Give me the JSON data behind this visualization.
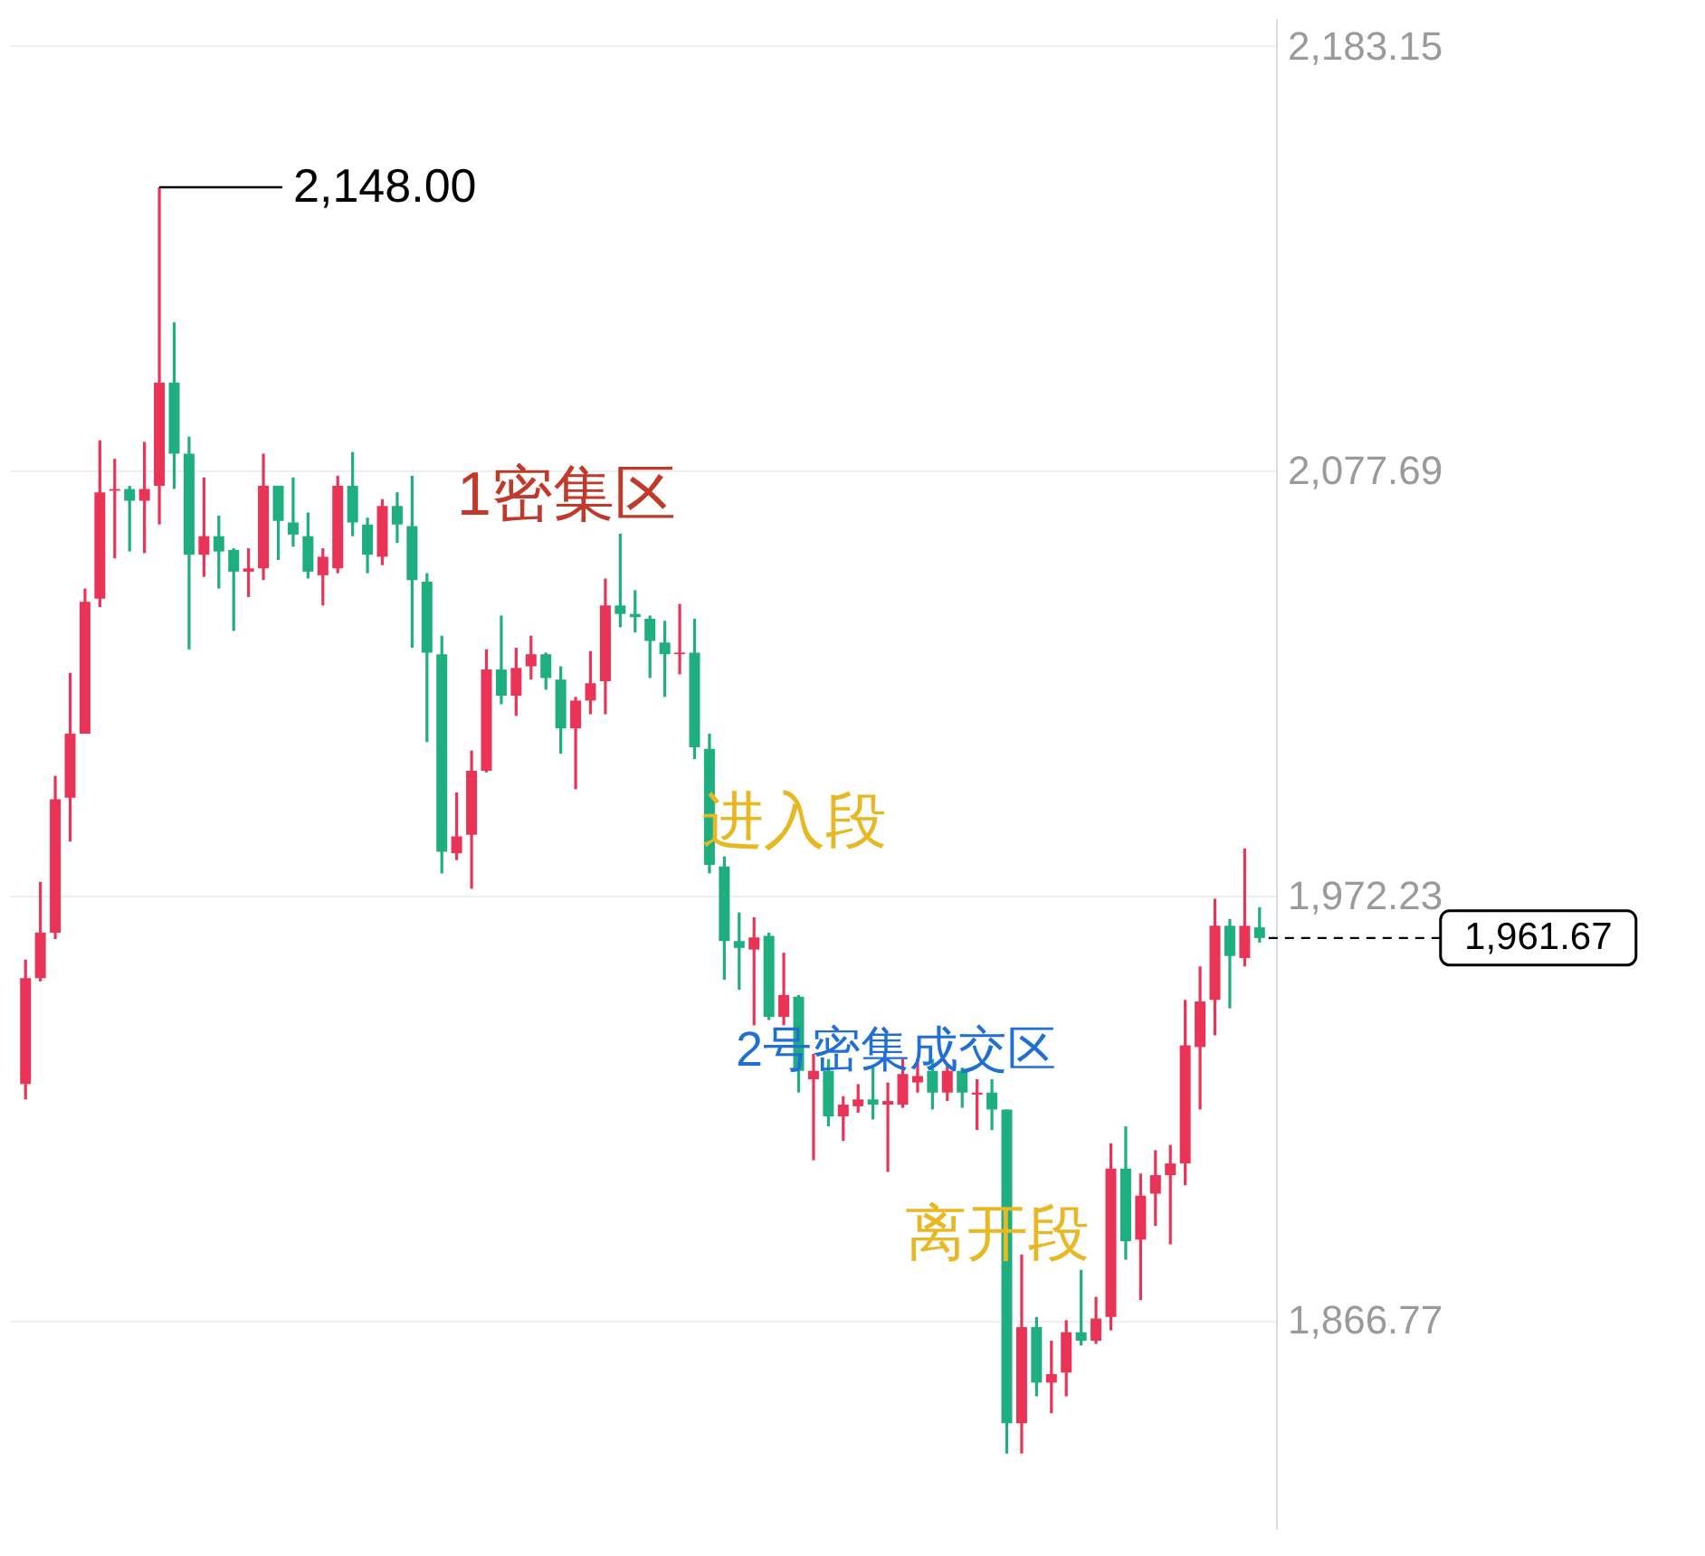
{
  "chart_data": {
    "type": "candlestick",
    "categories": [
      null,
      null,
      null,
      null,
      null,
      null,
      null,
      null,
      null,
      null,
      null,
      null,
      null,
      null,
      null,
      null,
      null,
      null,
      null,
      null,
      null,
      null,
      null,
      null,
      null,
      null,
      null,
      null,
      null,
      null,
      null,
      null,
      null,
      null,
      null,
      null,
      null,
      null,
      null,
      null,
      null,
      null,
      null,
      null,
      null,
      null,
      null,
      null,
      null,
      null,
      null,
      null,
      null,
      null,
      null,
      null,
      null,
      null,
      null,
      null,
      null,
      null,
      null,
      null,
      null,
      null,
      null,
      null,
      null,
      null,
      null,
      null,
      null,
      null,
      null,
      null,
      null,
      null,
      null,
      null,
      null,
      null,
      null,
      null
    ],
    "ohlc": [
      [
        1925.4,
        1956.3,
        1921.6,
        1951.7
      ],
      [
        1951.7,
        1975.6,
        1950.9,
        1963.0
      ],
      [
        1963.0,
        2001.9,
        1961.4,
        1996.1
      ],
      [
        1996.5,
        2027.5,
        1985.6,
        2012.4
      ],
      [
        2012.4,
        2048.4,
        2012.4,
        2045.1
      ],
      [
        2045.9,
        2085.2,
        2043.8,
        2072.3
      ],
      [
        2072.7,
        2080.6,
        2055.9,
        2073.1
      ],
      [
        2073.1,
        2073.9,
        2057.6,
        2070.2
      ],
      [
        2070.2,
        2084.8,
        2057.2,
        2073.1
      ],
      [
        2073.9,
        2148.0,
        2064.3,
        2099.5
      ],
      [
        2099.5,
        2114.5,
        2073.1,
        2081.9
      ],
      [
        2081.9,
        2086.1,
        2033.3,
        2056.8
      ],
      [
        2056.8,
        2076.0,
        2051.3,
        2061.4
      ],
      [
        2061.4,
        2066.5,
        2048.4,
        2057.6
      ],
      [
        2058.0,
        2058.4,
        2037.9,
        2052.6
      ],
      [
        2052.6,
        2058.4,
        2046.3,
        2053.4
      ],
      [
        2053.4,
        2081.9,
        2050.5,
        2073.9
      ],
      [
        2073.9,
        2073.9,
        2055.5,
        2065.2
      ],
      [
        2064.8,
        2076.0,
        2058.8,
        2061.8
      ],
      [
        2061.4,
        2067.3,
        2050.9,
        2052.6
      ],
      [
        2051.7,
        2058.4,
        2044.2,
        2056.3
      ],
      [
        2053.4,
        2076.4,
        2052.2,
        2073.9
      ],
      [
        2073.9,
        2082.3,
        2061.4,
        2064.8
      ],
      [
        2064.3,
        2066.0,
        2052.2,
        2056.8
      ],
      [
        2056.3,
        2070.6,
        2054.2,
        2068.9
      ],
      [
        2068.9,
        2072.3,
        2059.7,
        2064.3
      ],
      [
        2063.9,
        2076.4,
        2033.7,
        2050.5
      ],
      [
        2050.1,
        2052.2,
        2010.3,
        2032.5
      ],
      [
        2032.1,
        2036.7,
        1977.7,
        1983.1
      ],
      [
        1982.7,
        1997.8,
        1981.0,
        1986.9
      ],
      [
        1987.3,
        2008.2,
        1973.9,
        2003.2
      ],
      [
        2003.2,
        2033.3,
        2002.8,
        2028.3
      ],
      [
        2028.3,
        2041.7,
        2019.7,
        2021.8
      ],
      [
        2021.8,
        2033.7,
        2016.8,
        2028.7
      ],
      [
        2029.1,
        2036.7,
        2025.8,
        2032.1
      ],
      [
        2032.1,
        2032.5,
        2023.3,
        2026.2
      ],
      [
        2025.8,
        2029.1,
        2007.4,
        2013.7
      ],
      [
        2013.7,
        2021.5,
        1998.6,
        2020.6
      ],
      [
        2020.6,
        2032.9,
        2017.2,
        2024.9
      ],
      [
        2025.4,
        2050.9,
        2017.2,
        2044.2
      ],
      [
        2044.2,
        2062.0,
        2038.8,
        2042.1
      ],
      [
        2042.1,
        2048.0,
        2037.5,
        2041.3
      ],
      [
        2040.9,
        2041.7,
        2026.2,
        2035.4
      ],
      [
        2035.0,
        2040.4,
        2021.5,
        2032.1
      ],
      [
        2032.1,
        2044.6,
        2027.1,
        2032.5
      ],
      [
        2032.5,
        2040.9,
        2006.1,
        2009.0
      ],
      [
        2008.6,
        2012.4,
        1977.7,
        1979.8
      ],
      [
        1979.4,
        1981.9,
        1951.3,
        1960.9
      ],
      [
        1960.9,
        1968.0,
        1948.8,
        1959.2
      ],
      [
        1958.8,
        1966.8,
        1940.0,
        1961.8
      ],
      [
        1962.2,
        1963.0,
        1941.3,
        1942.1
      ],
      [
        1942.1,
        1958.0,
        1940.0,
        1947.5
      ],
      [
        1947.1,
        1947.5,
        1923.3,
        1928.7
      ],
      [
        1926.6,
        1932.9,
        1906.5,
        1928.7
      ],
      [
        1928.7,
        1931.6,
        1914.9,
        1917.4
      ],
      [
        1917.4,
        1922.4,
        1911.3,
        1920.3
      ],
      [
        1919.9,
        1925.4,
        1918.3,
        1921.6
      ],
      [
        1921.6,
        1929.5,
        1916.6,
        1920.3
      ],
      [
        1920.3,
        1925.8,
        1903.6,
        1921.2
      ],
      [
        1920.3,
        1931.6,
        1919.5,
        1927.9
      ],
      [
        1925.8,
        1931.6,
        1923.3,
        1927.4
      ],
      [
        1928.7,
        1931.6,
        1919.1,
        1923.3
      ],
      [
        1923.3,
        1930.0,
        1921.2,
        1928.7
      ],
      [
        1928.7,
        1929.5,
        1919.5,
        1923.3
      ],
      [
        1922.8,
        1926.6,
        1914.0,
        1923.3
      ],
      [
        1923.3,
        1926.6,
        1914.0,
        1919.1
      ],
      [
        1919.1,
        1919.1,
        1833.7,
        1841.2
      ],
      [
        1841.2,
        1883.1,
        1833.7,
        1865.1
      ],
      [
        1865.1,
        1867.6,
        1847.9,
        1851.3
      ],
      [
        1851.3,
        1861.7,
        1843.7,
        1853.4
      ],
      [
        1853.8,
        1866.8,
        1847.9,
        1863.8
      ],
      [
        1863.8,
        1879.3,
        1860.5,
        1861.7
      ],
      [
        1861.7,
        1872.6,
        1860.9,
        1867.2
      ],
      [
        1867.6,
        1910.7,
        1864.3,
        1904.4
      ],
      [
        1904.4,
        1914.9,
        1881.8,
        1886.4
      ],
      [
        1886.8,
        1903.2,
        1871.8,
        1897.7
      ],
      [
        1898.2,
        1909.0,
        1890.2,
        1902.8
      ],
      [
        1902.8,
        1910.3,
        1885.6,
        1905.7
      ],
      [
        1905.7,
        1946.3,
        1900.3,
        1935.0
      ],
      [
        1934.6,
        1954.6,
        1919.1,
        1945.9
      ],
      [
        1946.3,
        1971.4,
        1937.5,
        1964.7
      ],
      [
        1964.7,
        1966.4,
        1944.2,
        1957.2
      ],
      [
        1956.7,
        1983.9,
        1954.6,
        1964.7
      ],
      [
        1964.3,
        1969.3,
        1960.5,
        1961.67
      ]
    ],
    "colors": [
      "#ea3457",
      "#ea3457",
      "#ea3457",
      "#ea3457",
      "#ea3457",
      "#ea3457",
      "#ea3457",
      "#1fae80",
      "#ea3457",
      "#ea3457",
      "#1fae80",
      "#1fae80",
      "#ea3457",
      "#1fae80",
      "#1fae80",
      "#ea3457",
      "#ea3457",
      "#1fae80",
      "#1fae80",
      "#1fae80",
      "#ea3457",
      "#ea3457",
      "#1fae80",
      "#1fae80",
      "#ea3457",
      "#1fae80",
      "#1fae80",
      "#1fae80",
      "#1fae80",
      "#ea3457",
      "#ea3457",
      "#ea3457",
      "#1fae80",
      "#ea3457",
      "#ea3457",
      "#1fae80",
      "#1fae80",
      "#ea3457",
      "#ea3457",
      "#ea3457",
      "#1fae80",
      "#1fae80",
      "#1fae80",
      "#1fae80",
      "#ea3457",
      "#1fae80",
      "#1fae80",
      "#1fae80",
      "#1fae80",
      "#ea3457",
      "#1fae80",
      "#ea3457",
      "#1fae80",
      "#ea3457",
      "#1fae80",
      "#ea3457",
      "#ea3457",
      "#1fae80",
      "#ea3457",
      "#ea3457",
      "#ea3457",
      "#1fae80",
      "#ea3457",
      "#1fae80",
      "#ea3457",
      "#1fae80",
      "#1fae80",
      "#ea3457",
      "#1fae80",
      "#ea3457",
      "#ea3457",
      "#1fae80",
      "#ea3457",
      "#ea3457",
      "#1fae80",
      "#ea3457",
      "#ea3457",
      "#ea3457",
      "#ea3457",
      "#ea3457",
      "#ea3457",
      "#1fae80",
      "#ea3457",
      "#1fae80"
    ],
    "ylim": [
      1815,
      2190
    ],
    "yticks": [
      {
        "value": 2183.15,
        "label": "2,183.15"
      },
      {
        "value": 2077.69,
        "label": "2,077.69"
      },
      {
        "value": 1972.23,
        "label": "1,972.23"
      },
      {
        "value": 1866.77,
        "label": "1,866.77"
      }
    ],
    "grid": "y",
    "tick_labels": "y",
    "ref_lines": [
      {
        "axis": "y",
        "value": 1961.67,
        "label": "1,961.67",
        "line_style": "dashed",
        "color": "#000000"
      }
    ],
    "annotations": [
      "2,148.00",
      "1密集区",
      "进入段",
      "2号密集成交区",
      "离开段"
    ]
  }
}
